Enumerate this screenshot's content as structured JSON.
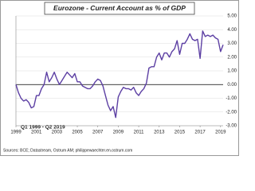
{
  "chart_data": {
    "type": "line",
    "title": "Eurozone - Current Account as % of GDP",
    "annotation": "Q1 1999 - Q2 2019",
    "source": "Sources: BCE; Datastream, Ostrum AM; philippewaechter.en.ostrum.com",
    "categories": [
      "1999",
      null,
      null,
      null,
      null,
      null,
      null,
      null,
      "2001",
      null,
      null,
      null,
      null,
      null,
      null,
      null,
      "2003",
      null,
      null,
      null,
      null,
      null,
      null,
      null,
      "2005",
      null,
      null,
      null,
      null,
      null,
      null,
      null,
      "2007",
      null,
      null,
      null,
      null,
      null,
      null,
      null,
      "2009",
      null,
      null,
      null,
      null,
      null,
      null,
      null,
      "2011",
      null,
      null,
      null,
      null,
      null,
      null,
      null,
      "2013",
      null,
      null,
      null,
      null,
      null,
      null,
      null,
      "2015",
      null,
      null,
      null,
      null,
      null,
      null,
      null,
      "2017",
      null,
      null,
      null,
      null,
      null,
      null,
      null,
      "2019",
      null
    ],
    "series": [
      {
        "name": "Current Account",
        "color": "#5c3fa3",
        "values": [
          0,
          -0.6,
          -1.0,
          -1.2,
          -1.1,
          -1.3,
          -1.7,
          -1.6,
          -0.8,
          -0.8,
          -0.3,
          0.0,
          0.9,
          0.2,
          0.5,
          0.9,
          0.4,
          0.0,
          0.3,
          0.6,
          0.9,
          0.7,
          0.5,
          0.8,
          0.2,
          0.2,
          -0.1,
          -0.2,
          -0.3,
          -0.3,
          -0.1,
          0.2,
          0.4,
          0.3,
          -0.1,
          -0.8,
          -1.5,
          -1.9,
          -1.6,
          -2.4,
          -0.9,
          -0.5,
          -0.2,
          -0.3,
          -0.3,
          -0.4,
          -0.2,
          -0.6,
          -0.8,
          -0.5,
          -0.3,
          0.1,
          1.2,
          1.3,
          1.3,
          2.0,
          2.3,
          1.8,
          2.3,
          2.3,
          2.0,
          2.4,
          2.6,
          3.2,
          2.2,
          3.0,
          3.0,
          3.3,
          3.7,
          3.3,
          3.2,
          3.3,
          1.9,
          3.9,
          3.5,
          3.6,
          3.5,
          3.6,
          3.4,
          3.3,
          2.4,
          2.9
        ]
      }
    ],
    "ylim": [
      -3,
      5
    ],
    "yticks": [
      {
        "value": -3,
        "label": "-3.00"
      },
      {
        "value": -2,
        "label": "-2.00"
      },
      {
        "value": -1,
        "label": "-1.00"
      },
      {
        "value": 0,
        "label": "0.00"
      },
      {
        "value": 1,
        "label": "1.00"
      },
      {
        "value": 2,
        "label": "2.00"
      },
      {
        "value": 3,
        "label": "3.00"
      },
      {
        "value": 4,
        "label": "4.00"
      },
      {
        "value": 5,
        "label": "5.00"
      }
    ],
    "grid": true
  }
}
